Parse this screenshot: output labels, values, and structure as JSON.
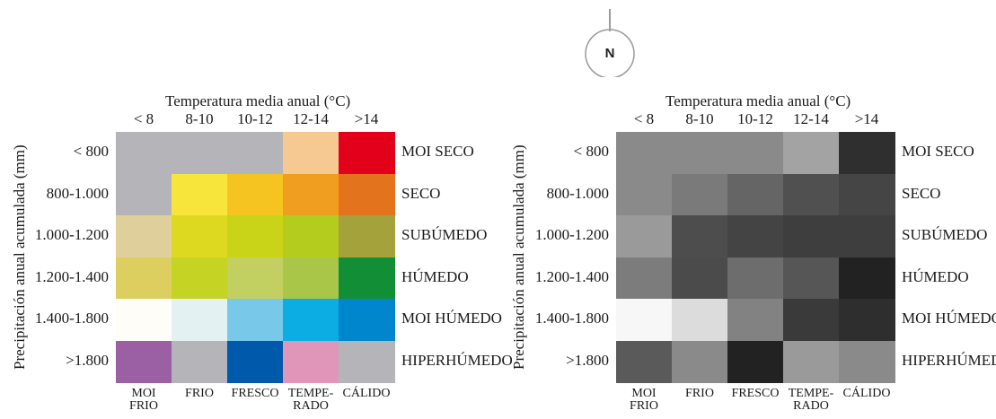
{
  "north_label": "N",
  "chart_data": [
    {
      "type": "heatmap",
      "title": "Temperatura media anual (°C)",
      "xlabel": "Temperatura media anual (°C)",
      "ylabel": "Precipitación anual acumulada (mm)",
      "x_categories": [
        "< 8",
        "8-10",
        "10-12",
        "12-14",
        ">14"
      ],
      "y_categories": [
        "< 800",
        "800-1.000",
        "1.000-1.200",
        "1.200-1.400",
        "1.400-1.800",
        ">1.800"
      ],
      "row_labels": [
        "MOI SECO",
        "SECO",
        "SUBÚMEDO",
        "HÚMEDO",
        "MOI HÚMEDO",
        "HIPERHÚMEDO"
      ],
      "column_labels": [
        "MOI\nFRIO",
        "FRIO",
        "FRESCO",
        "TEMPE-\nRADO",
        "CÁLIDO"
      ],
      "colors": [
        [
          "#b5b5b9",
          "#b5b5b9",
          "#b5b5b9",
          "#f6c993",
          "#e3001b"
        ],
        [
          "#b5b5b9",
          "#f8e53b",
          "#f6c421",
          "#ef9e1f",
          "#e4731e"
        ],
        [
          "#dfd09b",
          "#dcd920",
          "#c9d318",
          "#b3cc1e",
          "#a4a23a"
        ],
        [
          "#ddcf5f",
          "#c5d424",
          "#c2cf61",
          "#a9c649",
          "#128f36"
        ],
        [
          "#fffdf7",
          "#e4f1f3",
          "#78c8ea",
          "#0cade3",
          "#0086cd"
        ],
        [
          "#9b5fa3",
          "#b5b5b9",
          "#0059ab",
          "#e096b9",
          "#b5b5b9"
        ]
      ]
    },
    {
      "type": "heatmap",
      "title": "Temperatura media anual (°C)",
      "xlabel": "Temperatura media anual (°C)",
      "ylabel": "Precipitación anual acumulada (mm)",
      "x_categories": [
        "< 8",
        "8-10",
        "10-12",
        "12-14",
        ">14"
      ],
      "y_categories": [
        "< 800",
        "800-1.000",
        "1.000-1.200",
        "1.200-1.400",
        "1.400-1.800",
        ">1.800"
      ],
      "row_labels": [
        "MOI SECO",
        "SECO",
        "SUBÚMEDO",
        "HÚMEDO",
        "MOI HÚMEDO",
        "HIPERHÚMEDO"
      ],
      "column_labels": [
        "MOI\nFRIO",
        "FRIO",
        "FRESCO",
        "TEMPE-\nRADO",
        "CÁLIDO"
      ],
      "colors": [
        [
          "#8a8a8a",
          "#8a8a8a",
          "#8a8a8a",
          "#a3a3a3",
          "#2f2f2f"
        ],
        [
          "#8a8a8a",
          "#7a7a7a",
          "#656565",
          "#505050",
          "#454545"
        ],
        [
          "#9a9a9a",
          "#4d4d4d",
          "#444444",
          "#3e3e3e",
          "#3e3e3e"
        ],
        [
          "#7c7c7c",
          "#4b4b4b",
          "#6d6d6d",
          "#565656",
          "#222222"
        ],
        [
          "#f7f7f7",
          "#dcdcdc",
          "#828282",
          "#3a3a3a",
          "#2e2e2e"
        ],
        [
          "#5a5a5a",
          "#8a8a8a",
          "#222222",
          "#9a9a9a",
          "#8a8a8a"
        ]
      ]
    }
  ]
}
